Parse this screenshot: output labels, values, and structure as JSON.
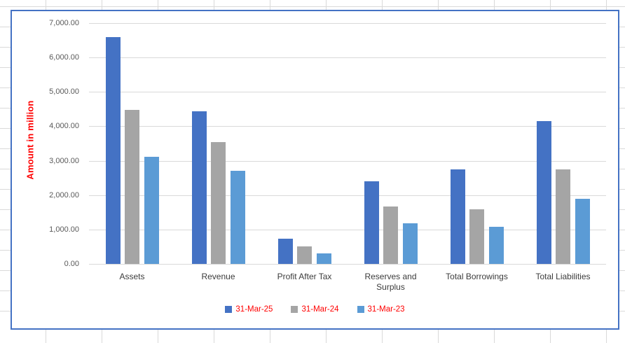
{
  "app": {
    "kind": "spreadsheet-embedded-chart"
  },
  "chart_data": {
    "type": "bar",
    "title": "",
    "xlabel": "",
    "ylabel": "Amount in million",
    "ylabel_color": "#FF0000",
    "ylim": [
      0,
      7000
    ],
    "ytick_step": 1000,
    "ytick_labels": [
      "0.00",
      "1,000.00",
      "2,000.00",
      "3,000.00",
      "4,000.00",
      "5,000.00",
      "6,000.00",
      "7,000.00"
    ],
    "grid": true,
    "legend_position": "bottom",
    "legend_text_color": "#FF0000",
    "categories": [
      "Assets",
      "Revenue",
      "Profit After Tax",
      "Reserves and Surplus",
      "Total Borrowings",
      "Total Liabilities"
    ],
    "series": [
      {
        "name": "31-Mar-25",
        "color": "#4472C4",
        "values": [
          6600,
          4440,
          730,
          2400,
          2740,
          4160
        ]
      },
      {
        "name": "31-Mar-24",
        "color": "#A5A5A5",
        "values": [
          4480,
          3550,
          500,
          1670,
          1590,
          2750
        ]
      },
      {
        "name": "31-Mar-23",
        "color": "#5B9BD5",
        "values": [
          3110,
          2700,
          310,
          1180,
          1070,
          1890
        ]
      }
    ]
  },
  "colors": {
    "chart_border": "#4472C4",
    "chart_gridline": "#D9D9D9",
    "sheet_gridline": "#D9D9D9",
    "tick_text": "#595959",
    "category_text": "#3B3B3B"
  }
}
